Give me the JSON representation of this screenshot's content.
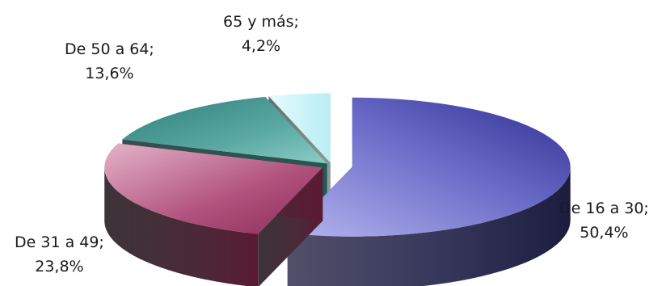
{
  "chart_data": {
    "type": "pie",
    "variant": "3d-exploded",
    "title": "",
    "slices": [
      {
        "label": "De 16 a 30",
        "value": 50.4,
        "value_text": "50,4%",
        "color": "#4a4aa8"
      },
      {
        "label": "De 31 a 49",
        "value": 23.8,
        "value_text": "23,8%",
        "color": "#b05a80"
      },
      {
        "label": "De 50 a 64",
        "value": 13.6,
        "value_text": "13,6%",
        "color": "#3a8a86"
      },
      {
        "label": "65 y más",
        "value": 4.2,
        "value_text": "4,2%",
        "color": "#c8f4f6"
      }
    ],
    "legend": "none",
    "label_separator": ";"
  }
}
